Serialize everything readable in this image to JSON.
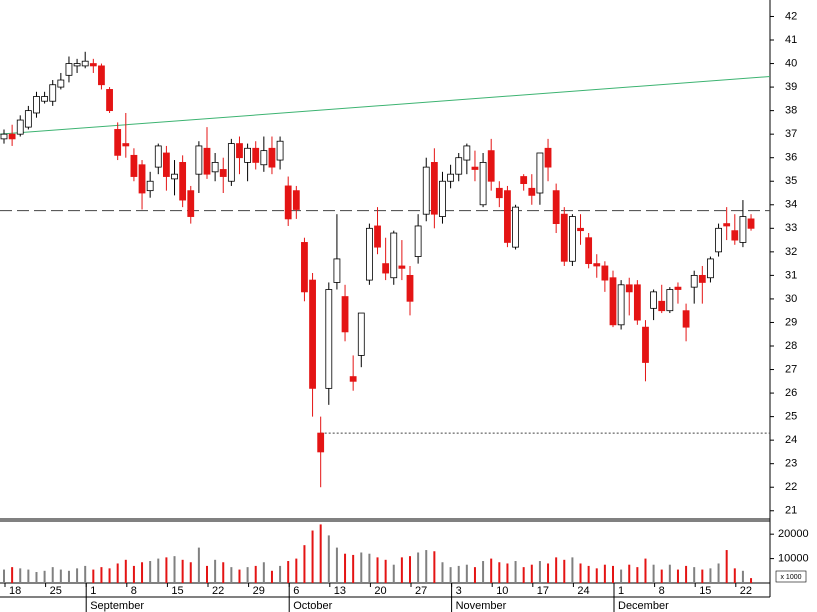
{
  "chart_data": {
    "type": "candlestick",
    "categories": [
      "18",
      null,
      null,
      null,
      null,
      "25",
      null,
      null,
      null,
      null,
      "1",
      null,
      null,
      null,
      null,
      "8",
      null,
      null,
      null,
      null,
      "15",
      null,
      null,
      null,
      null,
      "22",
      null,
      null,
      null,
      null,
      "29",
      null,
      null,
      null,
      null,
      "6",
      null,
      null,
      null,
      null,
      "13",
      null,
      null,
      null,
      null,
      "20",
      null,
      null,
      null,
      null,
      "27",
      null,
      null,
      null,
      null,
      "3",
      null,
      null,
      null,
      null,
      "10",
      null,
      null,
      null,
      null,
      "17",
      null,
      null,
      null,
      null,
      "24",
      null,
      null,
      null,
      null,
      "1",
      null,
      null,
      null,
      null,
      "8",
      null,
      null,
      null,
      null,
      "15",
      null,
      null,
      null,
      null,
      "22",
      null,
      null
    ],
    "months": [
      "September",
      "October",
      "November",
      "December"
    ],
    "open": [
      36.8,
      37.0,
      37.0,
      37.3,
      37.9,
      38.4,
      38.4,
      39.0,
      39.5,
      39.9,
      39.9,
      40.0,
      39.9,
      38.9,
      37.2,
      36.6,
      36.1,
      35.7,
      34.6,
      35.6,
      36.2,
      35.1,
      35.8,
      34.6,
      35.3,
      36.4,
      35.4,
      35.5,
      35.0,
      36.6,
      35.8,
      36.4,
      35.7,
      36.4,
      35.9,
      34.8,
      34.6,
      32.4,
      30.8,
      24.3,
      26.2,
      30.7,
      30.1,
      26.7,
      27.6,
      30.8,
      33.1,
      31.5,
      30.9,
      31.4,
      31.0,
      31.8,
      33.6,
      35.8,
      33.5,
      35.0,
      35.3,
      35.9,
      35.6,
      34.0,
      36.3,
      34.7,
      34.6,
      32.2,
      35.2,
      34.7,
      34.5,
      36.4,
      34.6,
      33.6,
      31.6,
      33.0,
      32.6,
      31.5,
      31.4,
      30.9,
      28.9,
      30.6,
      30.6,
      28.8,
      29.6,
      29.9,
      29.5,
      30.5,
      29.5,
      30.5,
      31.0,
      30.9,
      32.0,
      33.2,
      32.9,
      32.4,
      33.4
    ],
    "high": [
      37.2,
      37.4,
      37.8,
      38.2,
      38.8,
      38.8,
      39.3,
      39.6,
      40.3,
      40.2,
      40.5,
      40.2,
      40.0,
      39.0,
      37.5,
      37.9,
      36.4,
      35.9,
      35.4,
      36.6,
      36.5,
      35.9,
      36.1,
      34.8,
      36.7,
      37.3,
      36.2,
      36.0,
      36.8,
      36.9,
      36.6,
      36.7,
      36.9,
      36.9,
      36.9,
      35.2,
      34.8,
      32.6,
      31.1,
      25.0,
      30.7,
      33.6,
      30.6,
      27.6,
      29.4,
      33.2,
      33.9,
      32.6,
      32.9,
      32.5,
      31.4,
      33.6,
      36.0,
      36.4,
      35.4,
      35.7,
      36.2,
      36.6,
      36.3,
      36.2,
      36.8,
      35.0,
      34.8,
      34.0,
      35.3,
      35.3,
      36.2,
      36.8,
      34.9,
      33.9,
      33.6,
      33.6,
      32.8,
      31.9,
      31.6,
      31.2,
      30.8,
      30.9,
      30.8,
      29.1,
      30.4,
      30.6,
      30.5,
      30.7,
      29.8,
      31.2,
      31.4,
      31.8,
      33.2,
      33.9,
      33.6,
      34.2,
      33.6
    ],
    "low": [
      36.6,
      36.5,
      36.9,
      37.2,
      37.7,
      38.3,
      38.2,
      38.9,
      39.2,
      39.6,
      39.8,
      39.6,
      38.9,
      37.9,
      35.9,
      36.0,
      35.0,
      33.8,
      34.3,
      35.3,
      34.6,
      34.4,
      33.9,
      33.2,
      34.5,
      35.1,
      35.0,
      34.5,
      34.8,
      35.3,
      35.0,
      35.5,
      35.4,
      35.3,
      35.5,
      33.1,
      33.4,
      29.9,
      25.0,
      22.0,
      25.5,
      30.4,
      28.2,
      26.1,
      27.1,
      30.6,
      31.9,
      30.8,
      30.6,
      30.8,
      29.3,
      31.5,
      33.3,
      33.0,
      33.2,
      34.7,
      35.0,
      35.3,
      35.0,
      33.9,
      34.6,
      33.9,
      32.2,
      32.1,
      34.6,
      34.0,
      34.0,
      35.0,
      32.8,
      31.4,
      31.4,
      32.3,
      31.3,
      30.9,
      30.3,
      28.8,
      28.7,
      29.3,
      28.9,
      26.5,
      29.1,
      29.4,
      29.4,
      29.8,
      28.2,
      29.8,
      29.8,
      30.7,
      31.8,
      32.5,
      32.3,
      32.2,
      32.9
    ],
    "close": [
      37.0,
      36.8,
      37.6,
      38.0,
      38.6,
      38.6,
      39.1,
      39.3,
      40.0,
      40.0,
      40.1,
      39.9,
      39.1,
      38.0,
      36.1,
      36.5,
      35.2,
      34.5,
      35.0,
      36.5,
      35.2,
      35.3,
      34.2,
      33.5,
      36.5,
      35.3,
      35.8,
      35.2,
      36.6,
      36.0,
      36.4,
      35.8,
      36.3,
      35.6,
      36.7,
      33.4,
      33.8,
      30.3,
      26.2,
      23.5,
      30.4,
      31.7,
      28.6,
      26.5,
      29.4,
      33.0,
      32.2,
      31.1,
      32.8,
      31.3,
      29.9,
      33.1,
      35.6,
      33.6,
      35.0,
      35.3,
      36.0,
      36.5,
      35.5,
      35.8,
      35.0,
      34.3,
      32.4,
      33.9,
      34.9,
      34.4,
      36.2,
      35.6,
      33.2,
      31.6,
      33.5,
      32.9,
      31.5,
      31.4,
      30.8,
      28.9,
      30.6,
      30.3,
      29.1,
      27.3,
      30.3,
      29.5,
      30.4,
      30.4,
      28.8,
      31.0,
      30.7,
      31.7,
      33.0,
      33.1,
      32.5,
      33.5,
      33.0
    ],
    "up_color": "#ffffff",
    "down_color": "#e41414",
    "outline_color": "#000000",
    "ylim": [
      20.65,
      42.7
    ],
    "yticks": [
      21,
      22,
      23,
      24,
      25,
      26,
      27,
      28,
      29,
      30,
      31,
      32,
      33,
      34,
      35,
      36,
      37,
      38,
      39,
      40,
      41,
      42
    ],
    "trendline": {
      "color": "#3cb371",
      "values": [
        37.0,
        39.45
      ]
    },
    "hlines": [
      {
        "value": 33.75,
        "style": "dashed"
      },
      {
        "value": 24.3,
        "style": "dotted",
        "from": 39
      }
    ],
    "volume": {
      "values": [
        5500,
        6500,
        6000,
        5500,
        4500,
        5000,
        6500,
        5500,
        5000,
        6000,
        7000,
        5500,
        6500,
        6000,
        8000,
        9500,
        7000,
        8500,
        9000,
        10000,
        10500,
        11000,
        9500,
        8500,
        14500,
        7000,
        9500,
        8500,
        6500,
        5500,
        6500,
        7000,
        8500,
        5000,
        7000,
        9000,
        10000,
        15500,
        21500,
        24000,
        19500,
        14500,
        12000,
        11500,
        12500,
        12000,
        10500,
        9500,
        7500,
        10500,
        11000,
        12500,
        13500,
        13000,
        8500,
        6500,
        7000,
        7500,
        6500,
        9000,
        10000,
        8500,
        8000,
        9000,
        6500,
        7500,
        9000,
        8000,
        10500,
        9500,
        10500,
        8000,
        7000,
        6000,
        7500,
        7000,
        5500,
        7500,
        6500,
        10000,
        7500,
        5500,
        7500,
        5500,
        7000,
        6500,
        5500,
        6000,
        8000,
        13500,
        6000,
        5000,
        2000
      ],
      "up_color": "#808080",
      "down_color": "#e41414",
      "ylim": [
        0,
        25400
      ],
      "yticks": [
        10000,
        20000
      ],
      "unit": "x 1000"
    }
  }
}
